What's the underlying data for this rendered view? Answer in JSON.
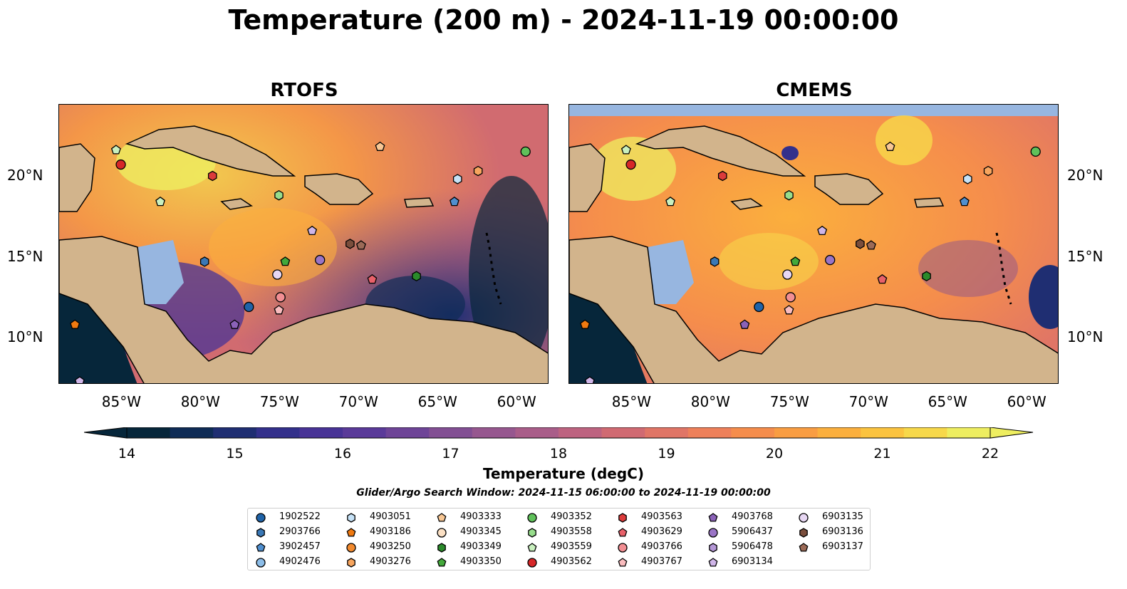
{
  "title": "Temperature (200 m) - 2024-11-19 00:00:00",
  "panels": [
    {
      "title": "RTOFS"
    },
    {
      "title": "CMEMS"
    }
  ],
  "axes": {
    "lon_labels": [
      "85°W",
      "80°W",
      "75°W",
      "70°W",
      "65°W",
      "60°W"
    ],
    "lat_labels": [
      "20°N",
      "15°N",
      "10°N"
    ]
  },
  "colorbar": {
    "ticks": [
      "14",
      "15",
      "16",
      "17",
      "18",
      "19",
      "20",
      "21",
      "22"
    ],
    "label": "Temperature (degC)",
    "colors": [
      "#06263a",
      "#0f2c56",
      "#1f2e72",
      "#33308b",
      "#483396",
      "#5a3a99",
      "#6e4497",
      "#824f93",
      "#96578f",
      "#a95d89",
      "#bd6380",
      "#d06a72",
      "#e07566",
      "#ee805a",
      "#f58d4c",
      "#f99d42",
      "#fbaf3d",
      "#fbc33f",
      "#f7d84a",
      "#eeee60"
    ]
  },
  "search_window": "Glider/Argo Search Window: 2024-11-15 06:00:00 to 2024-11-19 00:00:00",
  "legend": [
    {
      "id": "1902522",
      "color": "#1f63a8",
      "shape": "circle"
    },
    {
      "id": "2903766",
      "color": "#3a78b6",
      "shape": "hexagon"
    },
    {
      "id": "3902457",
      "color": "#4f8fcf",
      "shape": "pentagon"
    },
    {
      "id": "4902476",
      "color": "#8cbde8",
      "shape": "circle"
    },
    {
      "id": "4903051",
      "color": "#c6e2f7",
      "shape": "hexagon"
    },
    {
      "id": "4903186",
      "color": "#f07a10",
      "shape": "pentagon"
    },
    {
      "id": "4903250",
      "color": "#f28a2e",
      "shape": "circle"
    },
    {
      "id": "4903276",
      "color": "#f7a55e",
      "shape": "hexagon"
    },
    {
      "id": "4903333",
      "color": "#f8c794",
      "shape": "pentagon"
    },
    {
      "id": "4903345",
      "color": "#fbe0c4",
      "shape": "circle"
    },
    {
      "id": "4903349",
      "color": "#2b8a2b",
      "shape": "hexagon"
    },
    {
      "id": "4903350",
      "color": "#43a83b",
      "shape": "pentagon"
    },
    {
      "id": "4903352",
      "color": "#5fc15a",
      "shape": "circle"
    },
    {
      "id": "4903558",
      "color": "#97dd8c",
      "shape": "hexagon"
    },
    {
      "id": "4903559",
      "color": "#c9f0bf",
      "shape": "pentagon"
    },
    {
      "id": "4903562",
      "color": "#d62728",
      "shape": "circle"
    },
    {
      "id": "4903563",
      "color": "#dc3b3b",
      "shape": "hexagon"
    },
    {
      "id": "4903629",
      "color": "#e8616a",
      "shape": "pentagon"
    },
    {
      "id": "4903766",
      "color": "#f28e93",
      "shape": "circle"
    },
    {
      "id": "4903767",
      "color": "#f9bcbe",
      "shape": "pentagon"
    },
    {
      "id": "4903768",
      "color": "#8b62b8",
      "shape": "pentagon"
    },
    {
      "id": "5906437",
      "color": "#9a74c6",
      "shape": "circle"
    },
    {
      "id": "5906478",
      "color": "#b497d6",
      "shape": "hexagon"
    },
    {
      "id": "6903134",
      "color": "#cfb5e8",
      "shape": "pentagon"
    },
    {
      "id": "6903135",
      "color": "#e7d7f3",
      "shape": "circle"
    },
    {
      "id": "6903136",
      "color": "#7a4e3c",
      "shape": "hexagon"
    },
    {
      "id": "6903137",
      "color": "#9b6a57",
      "shape": "pentagon"
    }
  ],
  "markers": [
    {
      "id": "4903559",
      "lon": -85.4,
      "lat": 21.6
    },
    {
      "id": "4903562",
      "lon": -85.1,
      "lat": 20.7
    },
    {
      "id": "4903563",
      "lon": -79.3,
      "lat": 20.0
    },
    {
      "id": "4903559",
      "lon": -82.6,
      "lat": 18.4
    },
    {
      "id": "4903558",
      "lon": -75.1,
      "lat": 18.8
    },
    {
      "id": "4903333",
      "lon": -68.7,
      "lat": 21.8
    },
    {
      "id": "4903352",
      "lon": -59.5,
      "lat": 21.5
    },
    {
      "id": "4903051",
      "lon": -63.8,
      "lat": 19.8
    },
    {
      "id": "4903276",
      "lon": -62.5,
      "lat": 20.3
    },
    {
      "id": "3902457",
      "lon": -64.0,
      "lat": 18.4
    },
    {
      "id": "2903766",
      "lon": -79.8,
      "lat": 14.7
    },
    {
      "id": "4903350",
      "lon": -74.7,
      "lat": 14.7
    },
    {
      "id": "6903134",
      "lon": -73.0,
      "lat": 16.6
    },
    {
      "id": "5906437",
      "lon": -72.5,
      "lat": 14.8
    },
    {
      "id": "6903136",
      "lon": -70.6,
      "lat": 15.8
    },
    {
      "id": "6903137",
      "lon": -69.9,
      "lat": 15.7
    },
    {
      "id": "6903135",
      "lon": -75.2,
      "lat": 13.9
    },
    {
      "id": "4903629",
      "lon": -69.2,
      "lat": 13.6
    },
    {
      "id": "4903349",
      "lon": -66.4,
      "lat": 13.8
    },
    {
      "id": "4903766",
      "lon": -75.0,
      "lat": 12.5
    },
    {
      "id": "4903767",
      "lon": -75.1,
      "lat": 11.7
    },
    {
      "id": "1902522",
      "lon": -77.0,
      "lat": 11.9
    },
    {
      "id": "4903768",
      "lon": -77.9,
      "lat": 10.8
    },
    {
      "id": "4903186",
      "lon": -88.0,
      "lat": 10.8
    },
    {
      "id": "6903134",
      "lon": -87.7,
      "lat": 7.3
    }
  ]
}
